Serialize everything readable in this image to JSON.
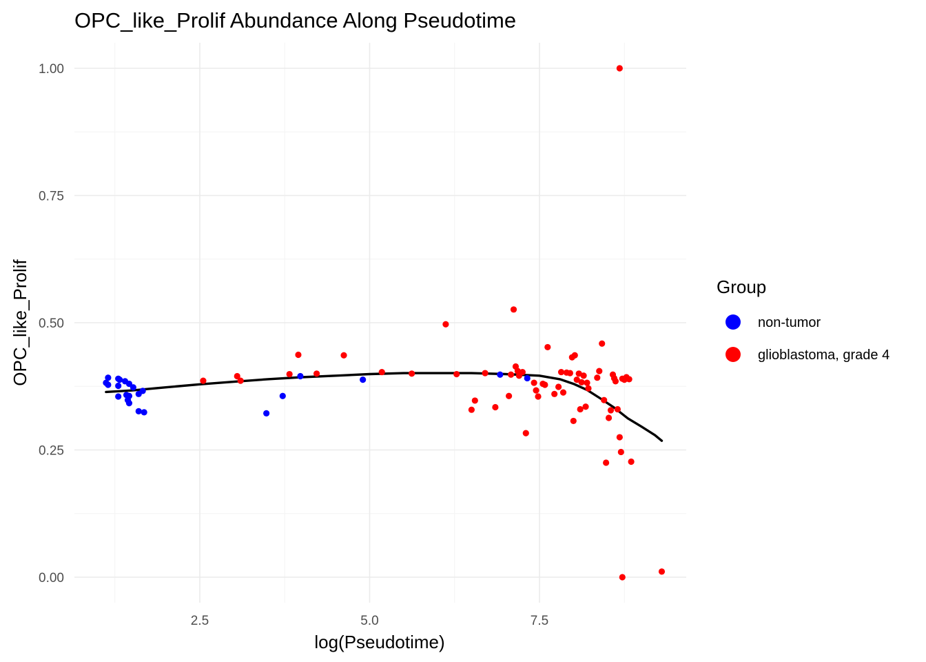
{
  "chart_data": {
    "type": "scatter",
    "title": "OPC_like_Prolif Abundance Along Pseudotime",
    "xlabel": "log(Pseudotime)",
    "ylabel": "OPC_like_Prolif",
    "xlim": [
      0.85,
      9.45
    ],
    "ylim": [
      -0.05,
      1.05
    ],
    "x_ticks": [
      2.5,
      5.0,
      7.5
    ],
    "x_tick_labels": [
      "2.5",
      "5.0",
      "7.5"
    ],
    "y_ticks": [
      0.0,
      0.25,
      0.5,
      0.75,
      1.0
    ],
    "y_tick_labels": [
      "0.00",
      "0.25",
      "0.50",
      "0.75",
      "1.00"
    ],
    "grid": true,
    "legend": {
      "title": "Group",
      "position": "right",
      "entries": [
        {
          "label": "non-tumor",
          "color": "#0000ff"
        },
        {
          "label": "glioblastoma, grade 4",
          "color": "#ff0000"
        }
      ]
    },
    "series": [
      {
        "name": "non-tumor",
        "color": "#0000ff",
        "points": [
          [
            1.15,
            0.392
          ],
          [
            1.12,
            0.382
          ],
          [
            1.15,
            0.378
          ],
          [
            1.3,
            0.39
          ],
          [
            1.32,
            0.388
          ],
          [
            1.4,
            0.385
          ],
          [
            1.46,
            0.38
          ],
          [
            1.3,
            0.376
          ],
          [
            1.52,
            0.373
          ],
          [
            1.3,
            0.355
          ],
          [
            1.42,
            0.358
          ],
          [
            1.46,
            0.356
          ],
          [
            1.44,
            0.348
          ],
          [
            1.46,
            0.342
          ],
          [
            1.6,
            0.36
          ],
          [
            1.66,
            0.366
          ],
          [
            1.6,
            0.326
          ],
          [
            1.68,
            0.324
          ],
          [
            3.48,
            0.322
          ],
          [
            3.72,
            0.356
          ],
          [
            3.98,
            0.395
          ],
          [
            4.9,
            0.388
          ],
          [
            6.92,
            0.398
          ],
          [
            7.32,
            0.391
          ]
        ]
      },
      {
        "name": "glioblastoma, grade 4",
        "color": "#ff0000",
        "points": [
          [
            2.55,
            0.386
          ],
          [
            3.05,
            0.395
          ],
          [
            3.1,
            0.386
          ],
          [
            3.82,
            0.399
          ],
          [
            3.95,
            0.437
          ],
          [
            4.22,
            0.4
          ],
          [
            4.62,
            0.436
          ],
          [
            5.18,
            0.403
          ],
          [
            5.62,
            0.4
          ],
          [
            6.12,
            0.497
          ],
          [
            6.28,
            0.399
          ],
          [
            6.5,
            0.329
          ],
          [
            6.55,
            0.347
          ],
          [
            6.7,
            0.401
          ],
          [
            6.85,
            0.334
          ],
          [
            7.05,
            0.356
          ],
          [
            7.08,
            0.398
          ],
          [
            7.12,
            0.526
          ],
          [
            7.15,
            0.414
          ],
          [
            7.18,
            0.405
          ],
          [
            7.2,
            0.396
          ],
          [
            7.25,
            0.403
          ],
          [
            7.3,
            0.283
          ],
          [
            7.42,
            0.382
          ],
          [
            7.45,
            0.367
          ],
          [
            7.48,
            0.355
          ],
          [
            7.55,
            0.38
          ],
          [
            7.58,
            0.378
          ],
          [
            7.62,
            0.452
          ],
          [
            7.72,
            0.36
          ],
          [
            7.78,
            0.374
          ],
          [
            7.82,
            0.403
          ],
          [
            7.85,
            0.363
          ],
          [
            7.9,
            0.402
          ],
          [
            7.95,
            0.401
          ],
          [
            7.98,
            0.432
          ],
          [
            8.0,
            0.307
          ],
          [
            8.02,
            0.436
          ],
          [
            8.05,
            0.388
          ],
          [
            8.08,
            0.4
          ],
          [
            8.1,
            0.33
          ],
          [
            8.12,
            0.383
          ],
          [
            8.15,
            0.396
          ],
          [
            8.18,
            0.335
          ],
          [
            8.2,
            0.382
          ],
          [
            8.22,
            0.371
          ],
          [
            8.35,
            0.392
          ],
          [
            8.38,
            0.405
          ],
          [
            8.42,
            0.459
          ],
          [
            8.45,
            0.348
          ],
          [
            8.48,
            0.225
          ],
          [
            8.52,
            0.313
          ],
          [
            8.55,
            0.328
          ],
          [
            8.58,
            0.398
          ],
          [
            8.6,
            0.391
          ],
          [
            8.62,
            0.385
          ],
          [
            8.65,
            0.33
          ],
          [
            8.68,
            0.275
          ],
          [
            8.7,
            0.246
          ],
          [
            8.72,
            0.39
          ],
          [
            8.75,
            0.388
          ],
          [
            8.78,
            0.393
          ],
          [
            8.82,
            0.389
          ],
          [
            8.85,
            0.227
          ],
          [
            8.68,
            1.0
          ],
          [
            8.72,
            0.0
          ],
          [
            9.3,
            0.011
          ]
        ]
      }
    ],
    "trend_line": {
      "color": "#000000",
      "points": [
        [
          1.12,
          0.364
        ],
        [
          1.5,
          0.367
        ],
        [
          2.0,
          0.373
        ],
        [
          2.5,
          0.379
        ],
        [
          3.0,
          0.384
        ],
        [
          3.5,
          0.389
        ],
        [
          4.0,
          0.393
        ],
        [
          4.5,
          0.396
        ],
        [
          5.0,
          0.399
        ],
        [
          5.5,
          0.401
        ],
        [
          6.0,
          0.401
        ],
        [
          6.5,
          0.401
        ],
        [
          7.0,
          0.399
        ],
        [
          7.5,
          0.396
        ],
        [
          7.8,
          0.389
        ],
        [
          8.0,
          0.38
        ],
        [
          8.2,
          0.368
        ],
        [
          8.4,
          0.351
        ],
        [
          8.6,
          0.333
        ],
        [
          8.8,
          0.312
        ],
        [
          9.0,
          0.296
        ],
        [
          9.2,
          0.279
        ],
        [
          9.3,
          0.268
        ]
      ]
    }
  }
}
